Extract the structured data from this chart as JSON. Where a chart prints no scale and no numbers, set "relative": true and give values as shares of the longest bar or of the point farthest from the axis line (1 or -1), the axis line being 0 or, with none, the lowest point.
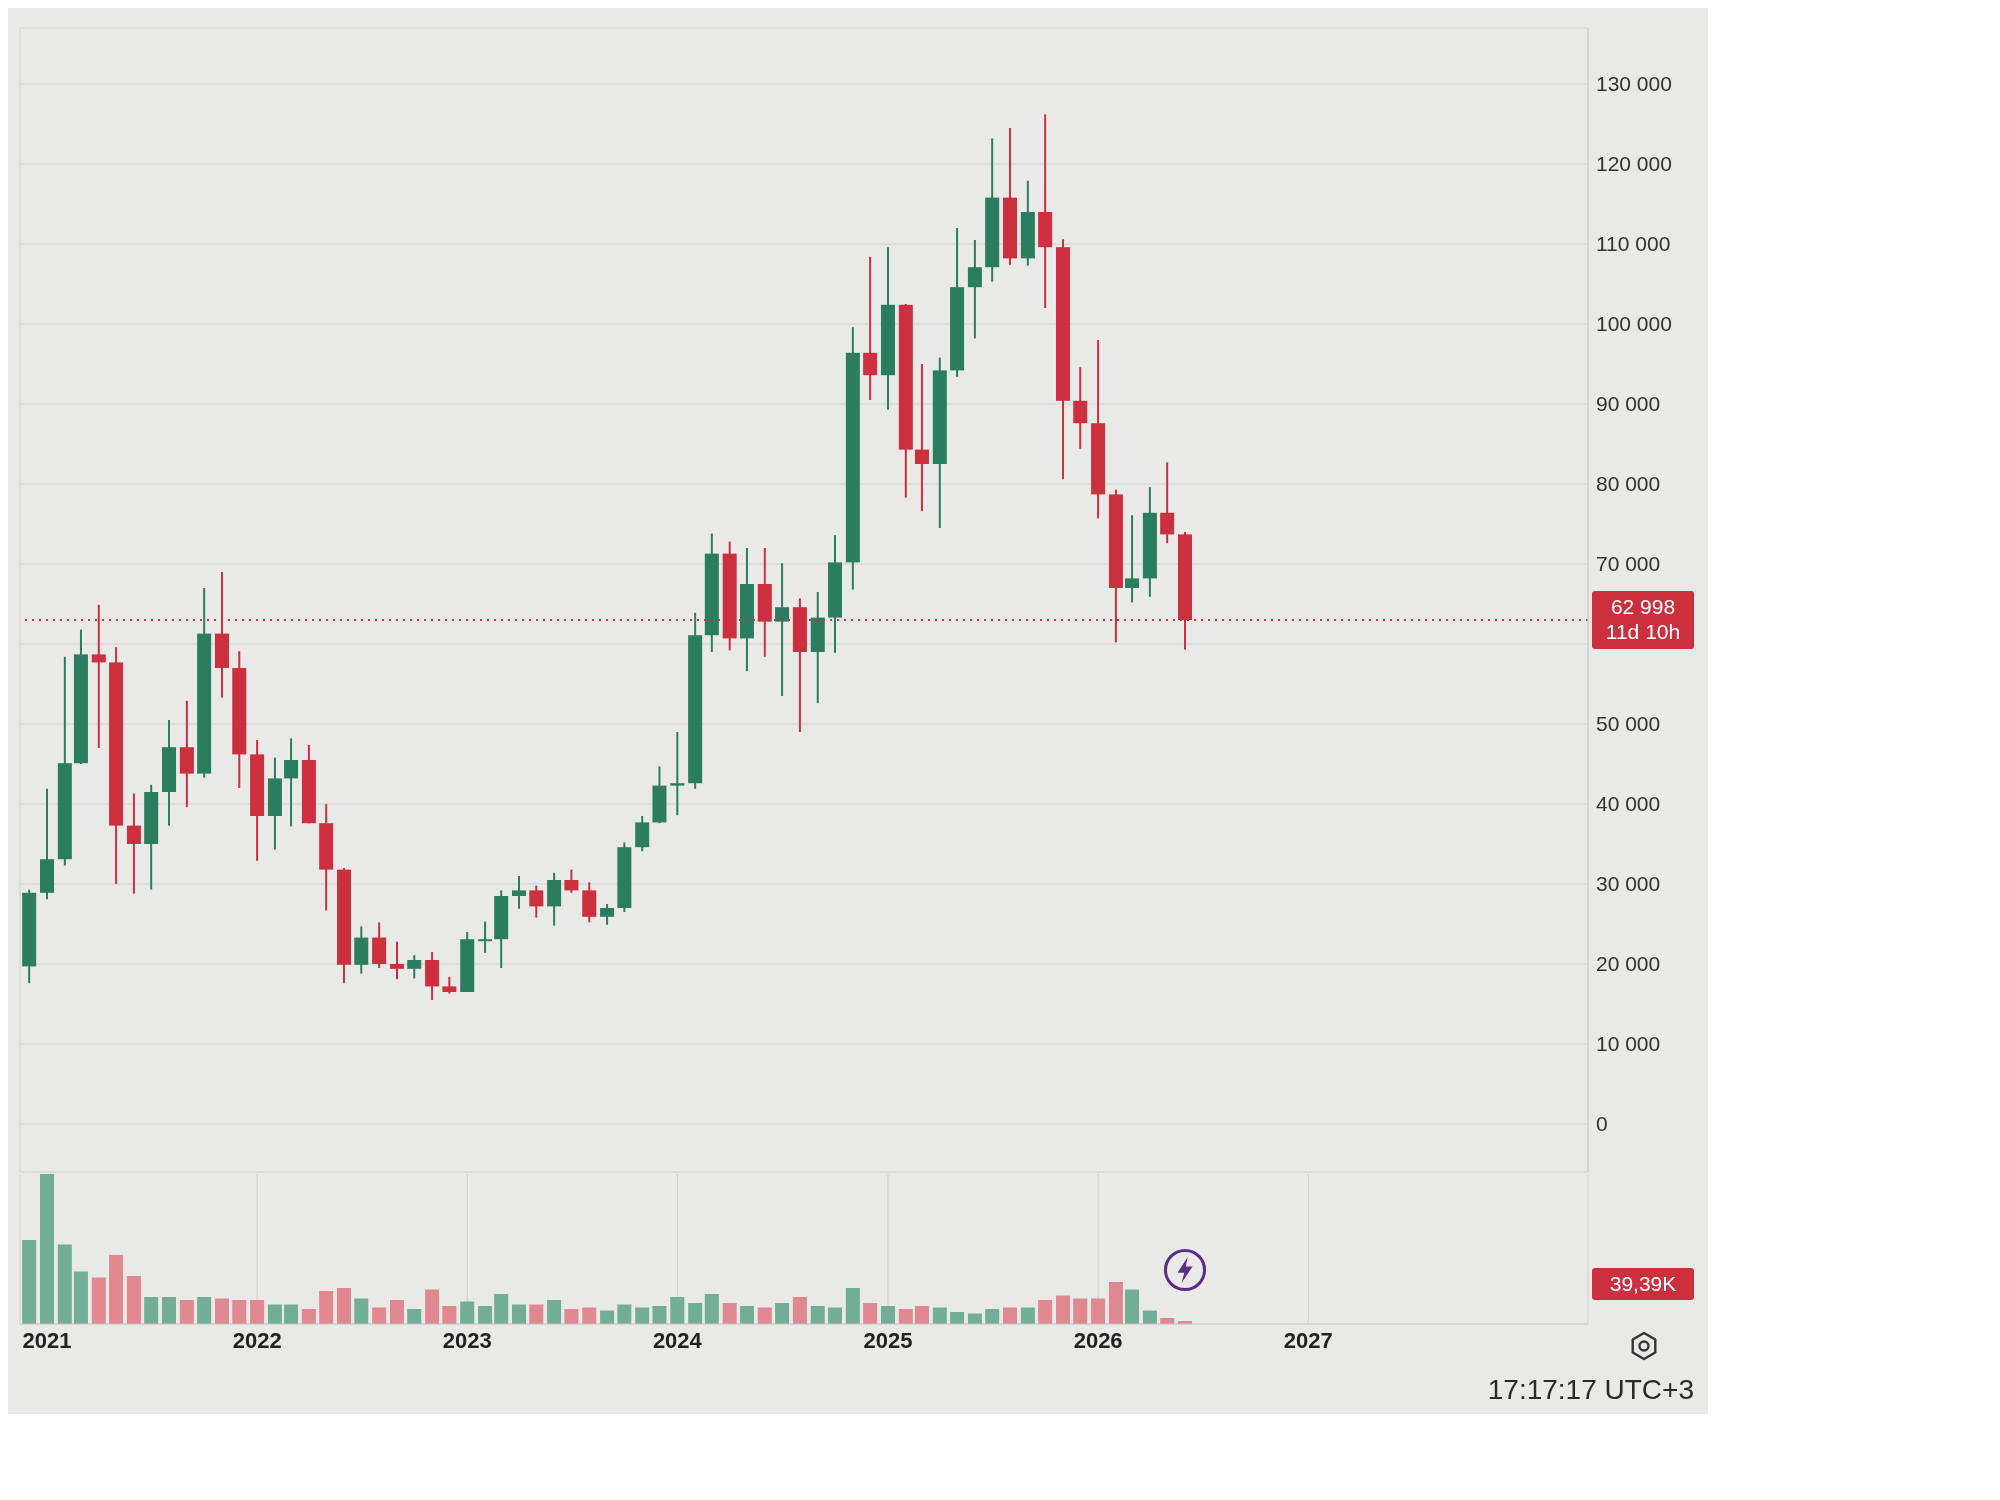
{
  "chart_data": [
    {
      "type": "candlestick",
      "x": [
        "2020-12",
        "2021-01",
        "2021-02",
        "2021-03",
        "2021-04",
        "2021-05",
        "2021-06",
        "2021-07",
        "2021-08",
        "2021-09",
        "2021-10",
        "2021-11",
        "2021-12",
        "2022-01",
        "2022-02",
        "2022-03",
        "2022-04",
        "2022-05",
        "2022-06",
        "2022-07",
        "2022-08",
        "2022-09",
        "2022-10",
        "2022-11",
        "2022-12",
        "2023-01",
        "2023-02",
        "2023-03",
        "2023-04",
        "2023-05",
        "2023-06",
        "2023-07",
        "2023-08",
        "2023-09",
        "2023-10",
        "2023-11",
        "2023-12",
        "2024-01",
        "2024-02",
        "2024-03",
        "2024-04",
        "2024-05",
        "2024-06",
        "2024-07",
        "2024-08",
        "2024-09",
        "2024-10",
        "2024-11",
        "2024-12",
        "2025-01",
        "2025-02",
        "2025-03",
        "2025-04",
        "2025-05",
        "2025-06",
        "2025-07",
        "2025-08",
        "2025-09",
        "2025-10",
        "2025-11",
        "2025-12",
        "2026-01",
        "2026-02",
        "2026-03",
        "2026-04",
        "2026-05",
        "2026-06"
      ],
      "ohlc": [
        [
          19700,
          29300,
          17600,
          28900
        ],
        [
          28900,
          41900,
          28100,
          33100
        ],
        [
          33100,
          58400,
          32300,
          45100
        ],
        [
          45100,
          61800,
          45000,
          58700
        ],
        [
          58700,
          64900,
          47000,
          57700
        ],
        [
          57700,
          59600,
          30000,
          37300
        ],
        [
          37300,
          41300,
          28800,
          35000
        ],
        [
          35000,
          42400,
          29300,
          41500
        ],
        [
          41500,
          50500,
          37300,
          47100
        ],
        [
          47100,
          52900,
          39600,
          43800
        ],
        [
          43800,
          67000,
          43300,
          61300
        ],
        [
          61300,
          69000,
          53300,
          57000
        ],
        [
          57000,
          59100,
          42000,
          46200
        ],
        [
          46200,
          48000,
          32900,
          38500
        ],
        [
          38500,
          45800,
          34300,
          43200
        ],
        [
          43200,
          48200,
          37200,
          45500
        ],
        [
          45500,
          47400,
          37600,
          37600
        ],
        [
          37600,
          40000,
          26700,
          31800
        ],
        [
          31800,
          32000,
          17600,
          19900
        ],
        [
          19900,
          24700,
          18800,
          23300
        ],
        [
          23300,
          25200,
          19500,
          20000
        ],
        [
          20000,
          22800,
          18100,
          19400
        ],
        [
          19400,
          21100,
          18200,
          20500
        ],
        [
          20500,
          21500,
          15500,
          17200
        ],
        [
          17200,
          18400,
          16300,
          16500
        ],
        [
          16500,
          24000,
          16500,
          23100
        ],
        [
          23100,
          25300,
          21400,
          23100
        ],
        [
          23100,
          29200,
          19500,
          28500
        ],
        [
          28500,
          31000,
          26900,
          29200
        ],
        [
          29200,
          29800,
          25800,
          27200
        ],
        [
          27200,
          31400,
          24800,
          30500
        ],
        [
          30500,
          31800,
          28900,
          29200
        ],
        [
          29200,
          30200,
          25200,
          25900
        ],
        [
          25900,
          27500,
          24900,
          27000
        ],
        [
          27000,
          35200,
          26500,
          34600
        ],
        [
          34600,
          38500,
          34100,
          37700
        ],
        [
          37700,
          44700,
          37600,
          42300
        ],
        [
          42300,
          49000,
          38600,
          42600
        ],
        [
          42600,
          63900,
          41900,
          61100
        ],
        [
          61100,
          73800,
          59000,
          71300
        ],
        [
          71300,
          72800,
          59200,
          60700
        ],
        [
          60700,
          72000,
          56600,
          67500
        ],
        [
          67500,
          72000,
          58400,
          62800
        ],
        [
          62800,
          70100,
          53500,
          64600
        ],
        [
          64600,
          65700,
          49000,
          59000
        ],
        [
          59000,
          66500,
          52600,
          63300
        ],
        [
          63300,
          73600,
          58900,
          70200
        ],
        [
          70200,
          99600,
          66800,
          96400
        ],
        [
          96400,
          108400,
          90500,
          93600
        ],
        [
          93600,
          109600,
          89300,
          102400
        ],
        [
          102400,
          102500,
          78300,
          84300
        ],
        [
          84300,
          95000,
          76600,
          82500
        ],
        [
          82500,
          95800,
          74500,
          94200
        ],
        [
          94200,
          112000,
          93400,
          104600
        ],
        [
          104600,
          110500,
          98200,
          107100
        ],
        [
          107100,
          123200,
          105300,
          115800
        ],
        [
          115800,
          124500,
          107400,
          108200
        ],
        [
          108200,
          117900,
          107300,
          114000
        ],
        [
          114000,
          126200,
          102000,
          109600
        ],
        [
          109600,
          110600,
          80600,
          90400
        ],
        [
          90400,
          94600,
          84400,
          87600
        ],
        [
          87600,
          98000,
          75700,
          78700
        ],
        [
          78700,
          79300,
          60200,
          67000
        ],
        [
          67000,
          76100,
          65200,
          68200
        ],
        [
          68200,
          79600,
          65900,
          76400
        ],
        [
          76400,
          82700,
          72600,
          73700
        ],
        [
          73700,
          74000,
          59300,
          62998
        ]
      ],
      "colors": [
        "#2b7d60",
        "#2b7d60",
        "#2b7d60",
        "#2b7d60",
        "#cc2f3e",
        "#cc2f3e",
        "#cc2f3e",
        "#2b7d60",
        "#2b7d60",
        "#cc2f3e",
        "#2b7d60",
        "#cc2f3e",
        "#cc2f3e",
        "#cc2f3e",
        "#2b7d60",
        "#2b7d60",
        "#cc2f3e",
        "#cc2f3e",
        "#cc2f3e",
        "#2b7d60",
        "#cc2f3e",
        "#cc2f3e",
        "#2b7d60",
        "#cc2f3e",
        "#cc2f3e",
        "#2b7d60",
        "#2b7d60",
        "#2b7d60",
        "#2b7d60",
        "#cc2f3e",
        "#2b7d60",
        "#cc2f3e",
        "#cc2f3e",
        "#2b7d60",
        "#2b7d60",
        "#2b7d60",
        "#2b7d60",
        "#2b7d60",
        "#2b7d60",
        "#2b7d60",
        "#cc2f3e",
        "#2b7d60",
        "#cc2f3e",
        "#2b7d60",
        "#cc2f3e",
        "#2b7d60",
        "#2b7d60",
        "#2b7d60",
        "#cc2f3e",
        "#2b7d60",
        "#cc2f3e",
        "#cc2f3e",
        "#2b7d60",
        "#2b7d60",
        "#2b7d60",
        "#2b7d60",
        "#cc2f3e",
        "#2b7d60",
        "#cc2f3e",
        "#cc2f3e",
        "#cc2f3e",
        "#cc2f3e",
        "#cc2f3e",
        "#2b7d60",
        "#2b7d60",
        "#cc2f3e",
        "#cc2f3e"
      ],
      "xlim": [
        "2020-11-15",
        "2028-05"
      ],
      "xticks": [
        "2021",
        "2022",
        "2023",
        "2024",
        "2025",
        "2026",
        "2027"
      ],
      "ylim": [
        -6000,
        137000
      ],
      "yticks": [
        0,
        {
          "value": 10000,
          "label": "10 000"
        },
        {
          "value": 20000,
          "label": "20 000"
        },
        {
          "value": 30000,
          "label": "30 000"
        },
        {
          "value": 40000,
          "label": "40 000"
        },
        {
          "value": 50000,
          "label": "50 000"
        },
        {
          "value": 60000,
          "label": null
        },
        {
          "value": 70000,
          "label": "70 000"
        },
        {
          "value": 80000,
          "label": "80 000"
        },
        {
          "value": 90000,
          "label": "90 000"
        },
        {
          "value": 100000,
          "label": "100 000"
        },
        {
          "value": 110000,
          "label": "110 000"
        },
        {
          "value": 120000,
          "label": "120 000"
        },
        {
          "value": 130000,
          "label": "130 000"
        }
      ],
      "grid": true,
      "tick_labels": "y",
      "ref_lines": [
        {
          "axis": "y",
          "value": 62998,
          "label": "62 998",
          "color": "#cc2f3e",
          "line_style": "dotted"
        }
      ],
      "annotations": [
        "11d 10h"
      ]
    },
    {
      "type": "bar",
      "x": [
        "2020-12",
        "2021-01",
        "2021-02",
        "2021-03",
        "2021-04",
        "2021-05",
        "2021-06",
        "2021-07",
        "2021-08",
        "2021-09",
        "2021-10",
        "2021-11",
        "2021-12",
        "2022-01",
        "2022-02",
        "2022-03",
        "2022-04",
        "2022-05",
        "2022-06",
        "2022-07",
        "2022-08",
        "2022-09",
        "2022-10",
        "2022-11",
        "2022-12",
        "2023-01",
        "2023-02",
        "2023-03",
        "2023-04",
        "2023-05",
        "2023-06",
        "2023-07",
        "2023-08",
        "2023-09",
        "2023-10",
        "2023-11",
        "2023-12",
        "2024-01",
        "2024-02",
        "2024-03",
        "2024-04",
        "2024-05",
        "2024-06",
        "2024-07",
        "2024-08",
        "2024-09",
        "2024-10",
        "2024-11",
        "2024-12",
        "2025-01",
        "2025-02",
        "2025-03",
        "2025-04",
        "2025-05",
        "2025-06",
        "2025-07",
        "2025-08",
        "2025-09",
        "2025-10",
        "2025-11",
        "2025-12",
        "2026-01",
        "2026-02",
        "2026-03",
        "2026-04",
        "2026-05",
        "2026-06"
      ],
      "values": [
        0.56,
        1,
        0.53,
        0.35,
        0.31,
        0.46,
        0.32,
        0.18,
        0.18,
        0.16,
        0.18,
        0.17,
        0.16,
        0.16,
        0.13,
        0.13,
        0.1,
        0.22,
        0.24,
        0.17,
        0.11,
        0.16,
        0.1,
        0.23,
        0.12,
        0.15,
        0.12,
        0.2,
        0.13,
        0.13,
        0.16,
        0.1,
        0.11,
        0.09,
        0.13,
        0.11,
        0.12,
        0.18,
        0.14,
        0.2,
        0.14,
        0.12,
        0.11,
        0.14,
        0.18,
        0.12,
        0.11,
        0.24,
        0.14,
        0.12,
        0.1,
        0.12,
        0.11,
        0.08,
        0.07,
        0.1,
        0.11,
        0.11,
        0.16,
        0.19,
        0.17,
        0.17,
        0.28,
        0.23,
        0.09,
        0.04,
        0.02
      ],
      "colors": [
        "#72ae97",
        "#72ae97",
        "#72ae97",
        "#72ae97",
        "#e0888f",
        "#e0888f",
        "#e0888f",
        "#72ae97",
        "#72ae97",
        "#e0888f",
        "#72ae97",
        "#e0888f",
        "#e0888f",
        "#e0888f",
        "#72ae97",
        "#72ae97",
        "#e0888f",
        "#e0888f",
        "#e0888f",
        "#72ae97",
        "#e0888f",
        "#e0888f",
        "#72ae97",
        "#e0888f",
        "#e0888f",
        "#72ae97",
        "#72ae97",
        "#72ae97",
        "#72ae97",
        "#e0888f",
        "#72ae97",
        "#e0888f",
        "#e0888f",
        "#72ae97",
        "#72ae97",
        "#72ae97",
        "#72ae97",
        "#72ae97",
        "#72ae97",
        "#72ae97",
        "#e0888f",
        "#72ae97",
        "#e0888f",
        "#72ae97",
        "#e0888f",
        "#72ae97",
        "#72ae97",
        "#72ae97",
        "#e0888f",
        "#72ae97",
        "#e0888f",
        "#e0888f",
        "#72ae97",
        "#72ae97",
        "#72ae97",
        "#72ae97",
        "#e0888f",
        "#72ae97",
        "#e0888f",
        "#e0888f",
        "#e0888f",
        "#e0888f",
        "#e0888f",
        "#72ae97",
        "#72ae97",
        "#e0888f",
        "#e0888f"
      ],
      "relative": true,
      "xlim": [
        "2020-11-15",
        "2028-05"
      ],
      "xticks": [
        "2021",
        "2022",
        "2023",
        "2024",
        "2025",
        "2026",
        "2027"
      ],
      "grid": "x",
      "tick_labels": "x",
      "annotations": [
        "39,39K",
        "17:17:17 UTC+3"
      ]
    }
  ]
}
